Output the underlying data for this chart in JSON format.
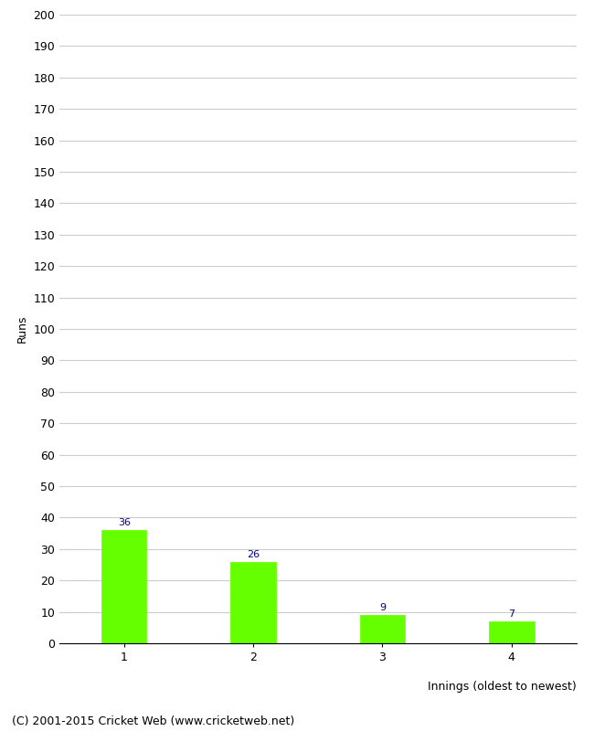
{
  "categories": [
    "1",
    "2",
    "3",
    "4"
  ],
  "values": [
    36,
    26,
    9,
    7
  ],
  "bar_color": "#66ff00",
  "bar_edge_color": "#66ff00",
  "xlabel": "Innings (oldest to newest)",
  "ylabel": "Runs",
  "ylim": [
    0,
    200
  ],
  "ytick_step": 10,
  "annotation_color": "#000080",
  "annotation_fontsize": 8,
  "footer_text": "(C) 2001-2015 Cricket Web (www.cricketweb.net)",
  "footer_fontsize": 9,
  "grid_color": "#cccccc",
  "background_color": "#ffffff",
  "bar_width": 0.35
}
